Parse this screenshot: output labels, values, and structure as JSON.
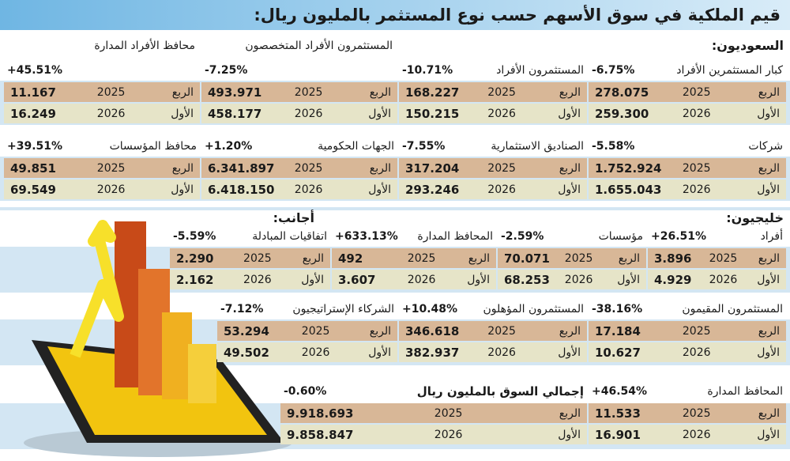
{
  "title": "قيم الملكية في سوق الأسهم حسب نوع المستثمر بالمليون ريال:",
  "labels": {
    "quarter": "الربع",
    "first": "الأول",
    "y2025": "2025",
    "y2026": "2026"
  },
  "saudi": {
    "heading": "السعوديون:",
    "blocks": [
      {
        "name": "كبار المستثمرين الأفراد",
        "change": "-6.75%",
        "values": [
          "278.075",
          "259.300"
        ]
      },
      {
        "name": "المستثمرون الأفراد",
        "change": "-10.71%",
        "values": [
          "168.227",
          "150.215"
        ]
      },
      {
        "name": "المستثمرون الأفراد المتخصصون",
        "change": "-7.25%",
        "values": [
          "493.971",
          "458.177"
        ]
      },
      {
        "name": "محافظ الأفراد المدارة",
        "change": "+45.51%",
        "values": [
          "11.167",
          "16.249"
        ]
      },
      {
        "name": "شركات",
        "change": "-5.58%",
        "values": [
          "1.752.924",
          "1.655.043"
        ]
      },
      {
        "name": "الصناديق الاستثمارية",
        "change": "-7.55%",
        "values": [
          "317.204",
          "293.246"
        ]
      },
      {
        "name": "الجهات الحكومية",
        "change": "+1.20%",
        "values": [
          "6.341.897",
          "6.418.150"
        ]
      },
      {
        "name": "محافظ المؤسسات",
        "change": "+39.51%",
        "values": [
          "49.851",
          "69.549"
        ]
      }
    ]
  },
  "gulf": {
    "heading": "خليجيون:",
    "blocks": [
      {
        "name": "أفراد",
        "change": "+26.51%",
        "values": [
          "3.896",
          "4.929"
        ]
      },
      {
        "name": "مؤسسات",
        "change": "-2.59%",
        "values": [
          "70.071",
          "68.253"
        ]
      }
    ]
  },
  "foreign": {
    "heading": "أجانب:",
    "blocks": [
      {
        "name": "المحافظ المدارة",
        "change": "+633.13%",
        "values": [
          "492",
          "3.607"
        ]
      },
      {
        "name": "اتفاقيات المبادلة",
        "change": "-5.59%",
        "values": [
          "2.290",
          "2.162"
        ]
      },
      {
        "name": "المستثمرون المقيمون",
        "change": "-38.16%",
        "values": [
          "17.184",
          "10.627"
        ]
      },
      {
        "name": "المستثمرون المؤهلون",
        "change": "+10.48%",
        "values": [
          "346.618",
          "382.937"
        ]
      },
      {
        "name": "الشركاء الإستراتيجيون",
        "change": "-7.12%",
        "values": [
          "53.294",
          "49.502"
        ]
      },
      {
        "name": "المحافظ المدارة",
        "change": "+46.54%",
        "values": [
          "11.533",
          "16.901"
        ]
      }
    ]
  },
  "total": {
    "name": "إجمالي السوق بالمليون ريال",
    "change": "-0.60%",
    "values": [
      "9.918.693",
      "9.858.847"
    ]
  }
}
